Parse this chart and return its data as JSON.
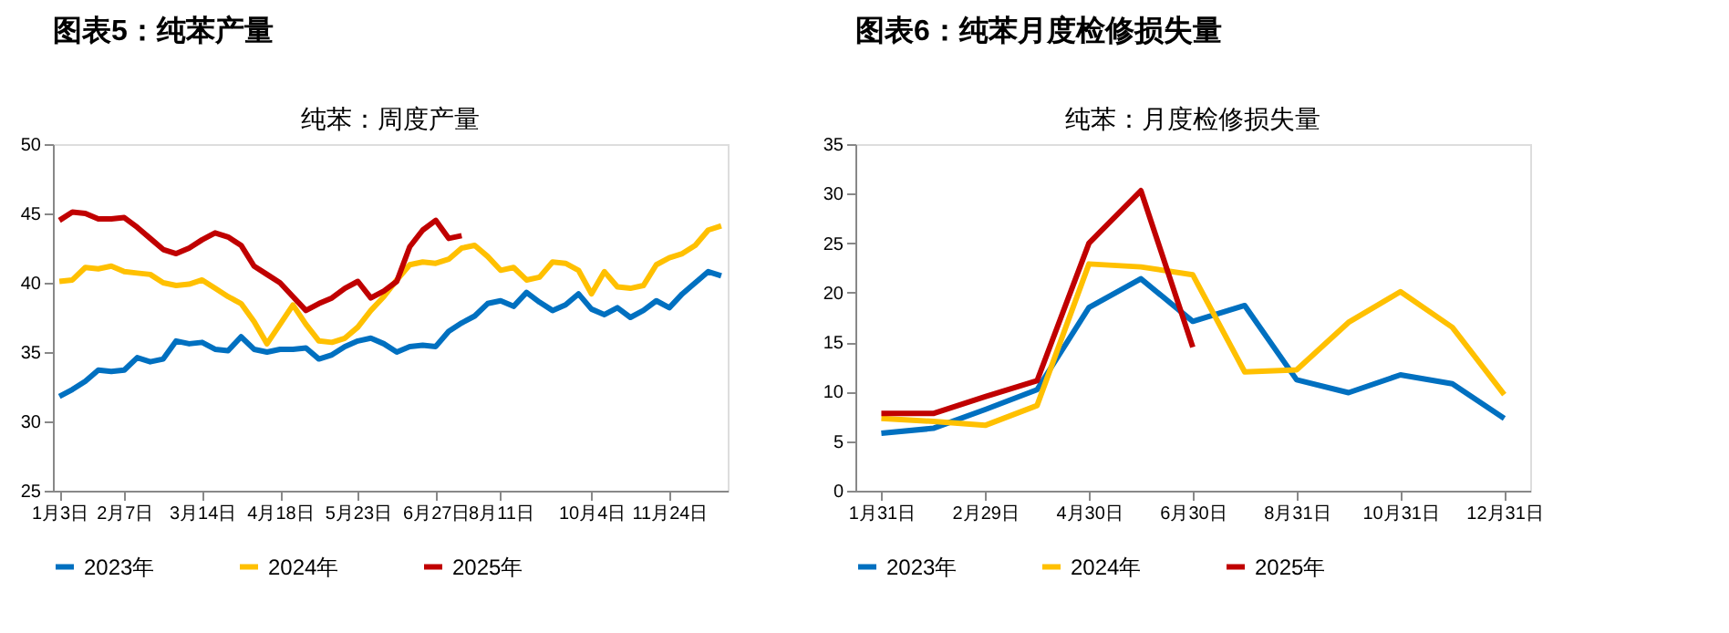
{
  "chart_data": [
    {
      "type": "line",
      "title": "图表5：纯苯产量",
      "subtitle": "纯苯：周度产量",
      "categories": [
        "1月3日",
        null,
        null,
        null,
        null,
        "2月7日",
        null,
        null,
        null,
        null,
        null,
        "3月14日",
        null,
        null,
        null,
        null,
        null,
        "4月18日",
        null,
        null,
        null,
        null,
        null,
        "5月23日",
        null,
        null,
        null,
        null,
        null,
        "6月27日",
        null,
        null,
        null,
        null,
        "8月11日",
        null,
        null,
        null,
        null,
        null,
        null,
        "10月4日",
        null,
        null,
        null,
        null,
        null,
        "11月24日",
        null,
        null,
        null,
        null
      ],
      "series": [
        {
          "name": "2023年",
          "color": "#0070c0",
          "values": [
            31.8,
            32.3,
            32.9,
            33.7,
            33.6,
            33.7,
            34.6,
            34.3,
            34.5,
            35.8,
            35.6,
            35.7,
            35.2,
            35.1,
            36.1,
            35.2,
            35.0,
            35.2,
            35.2,
            35.3,
            34.5,
            34.8,
            35.4,
            35.8,
            36.0,
            35.6,
            35.0,
            35.4,
            35.5,
            35.4,
            36.5,
            37.1,
            37.6,
            38.5,
            38.7,
            38.3,
            39.3,
            38.6,
            38.0,
            38.4,
            39.2,
            38.1,
            37.7,
            38.2,
            37.5,
            38.0,
            38.7,
            38.2,
            39.2,
            40.0,
            40.8,
            40.5
          ]
        },
        {
          "name": "2024年",
          "color": "#ffc000",
          "values": [
            40.1,
            40.2,
            41.1,
            41.0,
            41.2,
            40.8,
            40.7,
            40.6,
            40.0,
            39.8,
            39.9,
            40.2,
            39.6,
            39.0,
            38.5,
            37.2,
            35.6,
            37.0,
            38.4,
            37.0,
            35.8,
            35.7,
            36.0,
            36.8,
            38.0,
            39.0,
            40.2,
            41.3,
            41.5,
            41.4,
            41.7,
            42.5,
            42.7,
            41.9,
            40.9,
            41.1,
            40.2,
            40.4,
            41.5,
            41.4,
            40.9,
            39.2,
            40.8,
            39.7,
            39.6,
            39.8,
            41.3,
            41.8,
            42.1,
            42.7,
            43.8,
            44.1
          ]
        },
        {
          "name": "2025年",
          "color": "#c00000",
          "values": [
            44.5,
            45.1,
            45.0,
            44.6,
            44.6,
            44.7,
            44.0,
            43.2,
            42.4,
            42.1,
            42.5,
            43.1,
            43.6,
            43.3,
            42.7,
            41.2,
            40.6,
            40.0,
            39.0,
            38.0,
            38.5,
            38.9,
            39.6,
            40.1,
            38.9,
            39.4,
            40.1,
            42.6,
            43.8,
            44.5,
            43.2,
            43.4,
            null,
            null,
            null,
            null,
            null,
            null,
            null,
            null,
            null,
            null,
            null,
            null,
            null,
            null,
            null,
            null,
            null,
            null,
            null,
            null
          ]
        }
      ],
      "ylim": [
        25,
        50
      ],
      "yticks": [
        25,
        30,
        35,
        40,
        45,
        50
      ],
      "legend": "bottom",
      "grid": false
    },
    {
      "type": "line",
      "title": "图表6：纯苯月度检修损失量",
      "subtitle": "纯苯：月度检修损失量",
      "categories": [
        "1月31日",
        null,
        "2月29日",
        null,
        "4月30日",
        null,
        "6月30日",
        null,
        "8月31日",
        null,
        "10月31日",
        null,
        "12月31日"
      ],
      "series": [
        {
          "name": "2023年",
          "color": "#0070c0",
          "values": [
            5.8,
            6.3,
            8.2,
            10.2,
            18.5,
            21.4,
            17.1,
            18.7,
            11.2,
            9.9,
            11.7,
            10.8,
            7.3
          ]
        },
        {
          "name": "2024年",
          "color": "#ffc000",
          "values": [
            7.3,
            7.0,
            6.6,
            8.6,
            22.9,
            22.6,
            21.8,
            12.0,
            12.2,
            17.0,
            20.1,
            16.5,
            9.7
          ]
        },
        {
          "name": "2025年",
          "color": "#c00000",
          "values": [
            7.8,
            7.8,
            9.5,
            11.1,
            25.0,
            30.3,
            14.5,
            null,
            null,
            null,
            null,
            null,
            null
          ]
        }
      ],
      "ylim": [
        0,
        35
      ],
      "yticks": [
        0,
        5,
        10,
        15,
        20,
        25,
        30,
        35
      ],
      "legend": "bottom",
      "grid": false
    }
  ]
}
